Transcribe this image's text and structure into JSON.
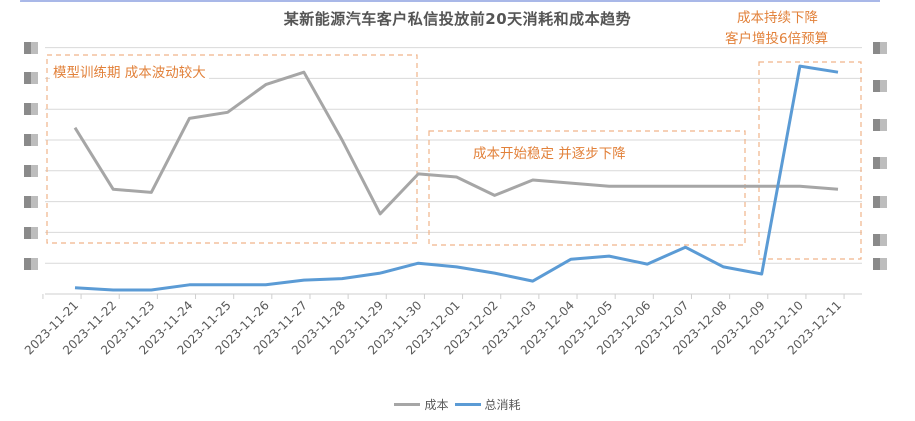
{
  "title": "某新能源汽车客户私信投放前20天消耗和成本趋势",
  "colors": {
    "cost": "#a6a6a6",
    "spend": "#5b9bd5",
    "annotation": "#e2813a",
    "grid": "#d9d9d9"
  },
  "annotations": [
    {
      "text": "模型训练期 成本波动较大"
    },
    {
      "text": "成本开始稳定 并逐步下降"
    },
    {
      "text": "成本持续下降"
    },
    {
      "text": "客户增投6倍预算"
    }
  ],
  "legend": {
    "cost_label": "成本",
    "spend_label": "总消耗"
  },
  "chart_data": {
    "type": "line",
    "title": "某新能源汽车客户私信投放前20天消耗和成本趋势",
    "xlabel": "",
    "ylabel": "",
    "y_axis_labels": "obscured (mosaic-blurred)",
    "grid": true,
    "legend_position": "bottom",
    "x": [
      "2023-11-21",
      "2023-11-22",
      "2023-11-23",
      "2023-11-24",
      "2023-11-25",
      "2023-11-26",
      "2023-11-27",
      "2023-11-28",
      "2023-11-29",
      "2023-11-30",
      "2023-12-01",
      "2023-12-02",
      "2023-12-03",
      "2023-12-04",
      "2023-12-05",
      "2023-12-06",
      "2023-12-07",
      "2023-12-08",
      "2023-12-09",
      "2023-12-10",
      "2023-12-11"
    ],
    "units_note": "values in relative gridline units (0 = baseline, 1 = one gridline step); absolute tick values are hidden",
    "series": [
      {
        "name": "成本",
        "axis": "left",
        "values": [
          5.4,
          3.4,
          3.3,
          5.7,
          5.9,
          6.8,
          7.2,
          5.0,
          2.6,
          3.9,
          3.8,
          3.2,
          3.7,
          3.6,
          3.5,
          3.5,
          3.5,
          3.5,
          3.5,
          3.5,
          3.4
        ]
      },
      {
        "name": "总消耗",
        "axis": "right",
        "values": [
          0.2,
          0.13,
          0.13,
          0.3,
          0.3,
          0.3,
          0.45,
          0.5,
          0.68,
          1.0,
          0.88,
          0.68,
          0.42,
          1.13,
          1.23,
          0.97,
          1.52,
          0.88,
          0.65,
          7.4,
          7.2
        ]
      }
    ]
  }
}
